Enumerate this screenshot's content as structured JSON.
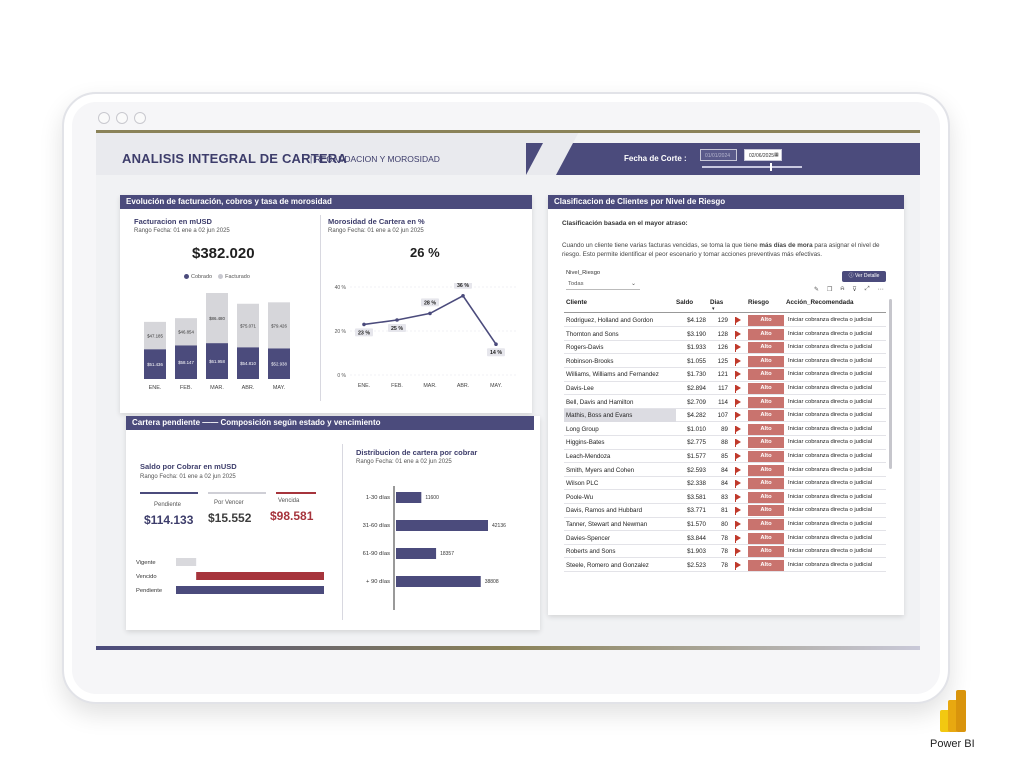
{
  "header": {
    "title": "ANALISIS INTEGRAL DE CARTERA",
    "subtitle": "RECAUDACION Y MOROSIDAD",
    "fecha_label": "Fecha de Corte :",
    "date_from": "01/01/2024",
    "date_to": "02/06/2025"
  },
  "panel_facturacion": {
    "header": "Evolución de facturación, cobros y tasa de morosidad",
    "left_title": "Facturacion en mUSD",
    "left_range": "Rango Fecha: 01 ene a 02 jun 2025",
    "left_kpi": "$382.020",
    "legend_cobrado": "Cobrado",
    "legend_facturado": "Facturado",
    "right_title": "Morosidad de Cartera en %",
    "right_range": "Rango Fecha: 01 ene a 02 jun 2025",
    "right_kpi": "26 %"
  },
  "panel_cartera": {
    "header": "Cartera pendiente —— Composición según estado  y vencimiento",
    "saldo_title": "Saldo por Cobrar en mUSD",
    "saldo_range": "Rango Fecha: 01 ene a 02 jun 2025",
    "pendiente_label": "Pendiente",
    "pendiente_value": "$114.133",
    "porvencer_label": "Por Vencer",
    "porvencer_value": "$15.552",
    "vencida_label": "Vencida",
    "vencida_value": "$98.581",
    "dist_title": "Distribucion de cartera por cobrar",
    "dist_range": "Rango Fecha: 01 ene a 02 jun 2025"
  },
  "panel_riesgo": {
    "header": "Clasificacion de Clientes por Nivel de Riesgo",
    "subtitle": "Clasificación basada en el mayor atraso:",
    "desc_part1": "Cuando un cliente tiene varias facturas vencidas, se toma la que tiene ",
    "desc_bold": "más días de mora",
    "desc_part2": " para asignar el nivel de riesgo. Esto permite identificar el peor escenario y tomar acciones preventivas más efectivas.",
    "filter_label": "Nivel_Riesgo",
    "filter_value": "Todas",
    "button_detalle": "Ver Detalle",
    "columns": [
      "Cliente",
      "Saldo",
      "Dias",
      "Riesgo",
      "Acción_Recomendada"
    ],
    "rows": [
      {
        "cliente": "Rodriguez, Holland and Gordon",
        "saldo": "$4.128",
        "dias": "129",
        "riesgo": "Alto",
        "accion": "Iniciar cobranza directa o judicial"
      },
      {
        "cliente": "Thornton and Sons",
        "saldo": "$3.190",
        "dias": "128",
        "riesgo": "Alto",
        "accion": "Iniciar cobranza directa o judicial"
      },
      {
        "cliente": "Rogers-Davis",
        "saldo": "$1.933",
        "dias": "126",
        "riesgo": "Alto",
        "accion": "Iniciar cobranza directa o judicial"
      },
      {
        "cliente": "Robinson-Brooks",
        "saldo": "$1.055",
        "dias": "125",
        "riesgo": "Alto",
        "accion": "Iniciar cobranza directa o judicial"
      },
      {
        "cliente": "Williams, Williams and Fernandez",
        "saldo": "$1.730",
        "dias": "121",
        "riesgo": "Alto",
        "accion": "Iniciar cobranza directa o judicial"
      },
      {
        "cliente": "Davis-Lee",
        "saldo": "$2.894",
        "dias": "117",
        "riesgo": "Alto",
        "accion": "Iniciar cobranza directa o judicial"
      },
      {
        "cliente": "Bell, Davis and Hamilton",
        "saldo": "$2.709",
        "dias": "114",
        "riesgo": "Alto",
        "accion": "Iniciar cobranza directa o judicial"
      },
      {
        "cliente": "Mathis, Boss and Evans",
        "saldo": "$4.282",
        "dias": "107",
        "riesgo": "Alto",
        "accion": "Iniciar cobranza directa o judicial"
      },
      {
        "cliente": "Long Group",
        "saldo": "$1.010",
        "dias": "89",
        "riesgo": "Alto",
        "accion": "Iniciar cobranza directa o judicial"
      },
      {
        "cliente": "Higgins-Bates",
        "saldo": "$2.775",
        "dias": "88",
        "riesgo": "Alto",
        "accion": "Iniciar cobranza directa o judicial"
      },
      {
        "cliente": "Leach-Mendoza",
        "saldo": "$1.577",
        "dias": "85",
        "riesgo": "Alto",
        "accion": "Iniciar cobranza directa o judicial"
      },
      {
        "cliente": "Smith, Myers and Cohen",
        "saldo": "$2.593",
        "dias": "84",
        "riesgo": "Alto",
        "accion": "Iniciar cobranza directa o judicial"
      },
      {
        "cliente": "Wilson PLC",
        "saldo": "$2.338",
        "dias": "84",
        "riesgo": "Alto",
        "accion": "Iniciar cobranza directa o judicial"
      },
      {
        "cliente": "Poole-Wu",
        "saldo": "$3.581",
        "dias": "83",
        "riesgo": "Alto",
        "accion": "Iniciar cobranza directa o judicial"
      },
      {
        "cliente": "Davis, Ramos and Hubbard",
        "saldo": "$3.771",
        "dias": "81",
        "riesgo": "Alto",
        "accion": "Iniciar cobranza directa o judicial"
      },
      {
        "cliente": "Tanner, Stewart and Newman",
        "saldo": "$1.570",
        "dias": "80",
        "riesgo": "Alto",
        "accion": "Iniciar cobranza directa o judicial"
      },
      {
        "cliente": "Davies-Spencer",
        "saldo": "$3.844",
        "dias": "78",
        "riesgo": "Alto",
        "accion": "Iniciar cobranza directa o judicial"
      },
      {
        "cliente": "Roberts and Sons",
        "saldo": "$1.903",
        "dias": "78",
        "riesgo": "Alto",
        "accion": "Iniciar cobranza directa o judicial"
      },
      {
        "cliente": "Steele, Romero and Gonzalez",
        "saldo": "$2.523",
        "dias": "78",
        "riesgo": "Alto",
        "accion": "Iniciar cobranza directa o judicial"
      }
    ],
    "selected_row": 7
  },
  "branding": {
    "label": "Power BI"
  },
  "colors": {
    "primary": "#4b4b7c",
    "facturado": "#d6d6da",
    "vencida": "#a6343c",
    "riesgo_alto": "#c9736e",
    "porvencer": "#d9d9dd"
  },
  "chart_data": [
    {
      "type": "bar",
      "title": "Facturacion en mUSD",
      "categories": [
        "ENE.",
        "FEB.",
        "MAR.",
        "ABR.",
        "MAY."
      ],
      "series": [
        {
          "name": "Cobrado",
          "values": [
            51436,
            58147,
            61958,
            54810,
            52938
          ],
          "labels": [
            "$51.436",
            "$58.147",
            "$61.958",
            "$54.810",
            "$52.938"
          ]
        },
        {
          "name": "Facturado",
          "values": [
            47185,
            46854,
            86480,
            75071,
            79426
          ],
          "labels": [
            "$47.185",
            "$46.854",
            "$86.480",
            "$75.071",
            "$79.426"
          ]
        }
      ]
    },
    {
      "type": "line",
      "title": "Morosidad de Cartera en %",
      "categories": [
        "ENE.",
        "FEB.",
        "MAR.",
        "ABR.",
        "MAY."
      ],
      "values": [
        23,
        25,
        28,
        36,
        14
      ],
      "labels": [
        "23 %",
        "25 %",
        "28 %",
        "36 %",
        "14 %"
      ],
      "yticks": [
        "0 %",
        "20 %",
        "40 %"
      ],
      "ylim": [
        0,
        40
      ]
    },
    {
      "type": "bar",
      "title": "Saldo por Cobrar en mUSD",
      "categories": [
        "Vigente",
        "Vencido",
        "Pendiente"
      ],
      "values": [
        15552,
        98581,
        114133
      ]
    },
    {
      "type": "bar",
      "title": "Distribucion de cartera por cobrar",
      "categories": [
        "1-30 días",
        "31-60 días",
        "61-90 días",
        "+ 90 días"
      ],
      "values": [
        11600,
        42136,
        18357,
        38808
      ],
      "labels": [
        "11600",
        "42136",
        "18357",
        "38808"
      ]
    }
  ]
}
